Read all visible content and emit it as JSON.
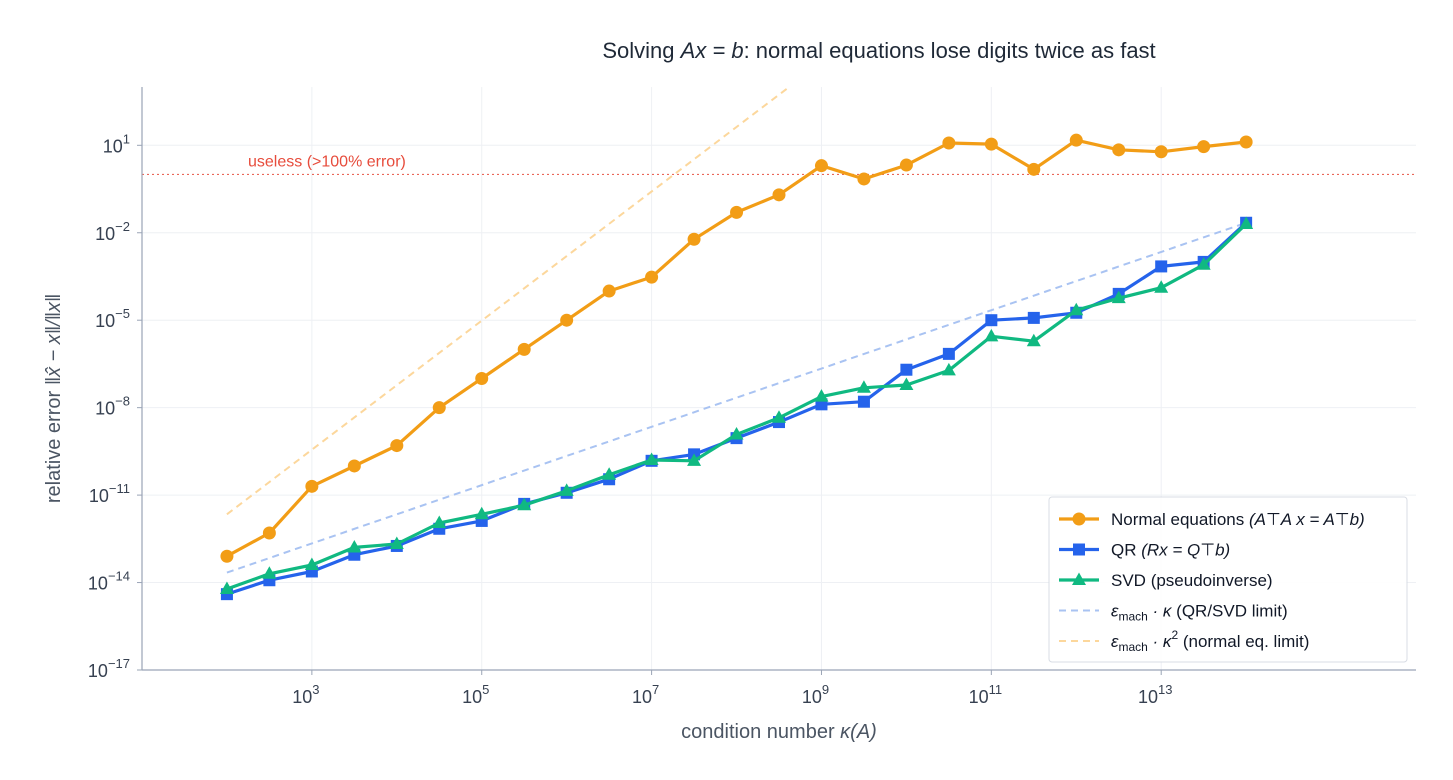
{
  "chart_data": {
    "type": "line",
    "title": {
      "pre": "Solving ",
      "math": "Ax = b",
      "post": ": normal equations lose digits twice as fast"
    },
    "xlabel": {
      "text": "condition number",
      "math": "κ(A)"
    },
    "ylabel": {
      "text": "relative error",
      "math": "‖x̂ − x‖/‖x‖"
    },
    "x_scale": "log",
    "y_scale": "log",
    "x_range": [
      10,
      10000000000000000
    ],
    "y_range": [
      1e-17,
      1000
    ],
    "x_ticks": [
      {
        "base": "10",
        "exp": "3",
        "value": 1000
      },
      {
        "base": "10",
        "exp": "5",
        "value": 100000
      },
      {
        "base": "10",
        "exp": "7",
        "value": 10000000
      },
      {
        "base": "10",
        "exp": "9",
        "value": 1000000000
      },
      {
        "base": "10",
        "exp": "11",
        "value": 100000000000
      },
      {
        "base": "10",
        "exp": "13",
        "value": 10000000000000
      }
    ],
    "y_ticks": [
      {
        "base": "10",
        "exp": "1",
        "value": 10
      },
      {
        "base": "10",
        "exp": "−2",
        "value": 0.01
      },
      {
        "base": "10",
        "exp": "−5",
        "value": 1e-05
      },
      {
        "base": "10",
        "exp": "−8",
        "value": 1e-08
      },
      {
        "base": "10",
        "exp": "−11",
        "value": 1e-11
      },
      {
        "base": "10",
        "exp": "−14",
        "value": 1e-14
      },
      {
        "base": "10",
        "exp": "−17",
        "value": 1e-17
      }
    ],
    "grid": true,
    "legend_position": "bottom-right",
    "x": [
      100,
      316,
      1000,
      3162,
      10000,
      31623,
      100000,
      316228,
      1000000,
      3162278,
      10000000,
      31622777,
      100000000,
      316227766,
      1000000000,
      3162277660,
      10000000000,
      31622776602,
      100000000000,
      316227766017,
      1000000000000,
      3162277660168,
      10000000000000,
      31622776601684,
      100000000000000
    ],
    "series": [
      {
        "name": "Normal equations",
        "name_math": "(A⊤A x = A⊤b)",
        "color": "#f29d16",
        "marker": "circle",
        "values": [
          8e-14,
          5e-13,
          2e-11,
          1e-10,
          5e-10,
          1e-08,
          1e-07,
          1e-06,
          1e-05,
          0.0001,
          0.0003,
          0.006,
          0.05,
          0.2,
          2,
          0.7,
          2.1,
          12,
          11,
          1.5,
          15,
          7,
          6,
          9,
          13
        ]
      },
      {
        "name": "QR",
        "name_math": "(Rx = Q⊤b)",
        "color": "#2563eb",
        "marker": "square",
        "values": [
          4e-15,
          1.2e-14,
          2.4e-14,
          9e-14,
          1.8e-13,
          7e-13,
          1.3e-12,
          5e-12,
          1.2e-11,
          3.5e-11,
          1.5e-10,
          2.5e-10,
          9e-10,
          3.2e-09,
          1.3e-08,
          1.6e-08,
          2e-07,
          7e-07,
          1e-05,
          1.2e-05,
          1.8e-05,
          8e-05,
          0.0007,
          0.001,
          0.022
        ]
      },
      {
        "name": "SVD",
        "name_math": "(pseudoinverse)",
        "color": "#10b981",
        "marker": "triangle",
        "values": [
          6e-15,
          2e-14,
          4e-14,
          1.6e-13,
          2.1e-13,
          1.1e-12,
          2.2e-12,
          4.5e-12,
          1.4e-11,
          5e-11,
          1.6e-10,
          1.5e-10,
          1.2e-09,
          4.5e-09,
          2.4e-08,
          4.8e-08,
          6e-08,
          1.9e-07,
          2.8e-06,
          1.9e-06,
          2.2e-05,
          5.7e-05,
          0.00013,
          0.0008,
          0.02
        ]
      },
      {
        "name": "ε_mach · κ",
        "name_math": "(QR/SVD limit)",
        "color": "#a9c3f2",
        "dashed": true,
        "x": [
          100,
          100000000000000
        ],
        "values": [
          2.2e-14,
          0.022
        ]
      },
      {
        "name": "ε_mach · κ²",
        "name_math": "(normal eq. limit)",
        "color": "#fcd79c",
        "dashed": true,
        "x": [
          100,
          10000000000000000
        ],
        "values": [
          2.2e-12,
          22000000000000000000
        ]
      }
    ],
    "annotations": [
      {
        "type": "hline",
        "y": 1,
        "color": "#e74c3c",
        "label": "useless (>100% error)"
      }
    ]
  }
}
